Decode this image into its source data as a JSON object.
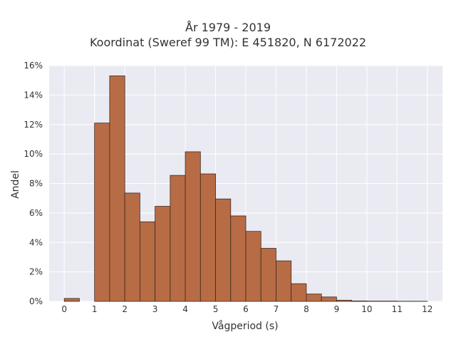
{
  "chart_data": {
    "type": "bar",
    "title_lines": [
      "År 1979 - 2019",
      "Koordinat (Sweref 99 TM): E 451820, N 6172022"
    ],
    "xlabel": "Vågperiod (s)",
    "ylabel": "Andel",
    "xlim": [
      -0.5,
      12.5
    ],
    "ylim": [
      0,
      16
    ],
    "x_ticks": [
      "0",
      "1",
      "2",
      "3",
      "4",
      "5",
      "6",
      "7",
      "8",
      "9",
      "10",
      "11",
      "12"
    ],
    "y_ticks": [
      "0%",
      "2%",
      "4%",
      "6%",
      "8%",
      "10%",
      "12%",
      "14%",
      "16%"
    ],
    "grid": true,
    "bin_width": 0.5,
    "bins": [
      {
        "start": 0.0,
        "value": 0.2
      },
      {
        "start": 0.5,
        "value": 0.0
      },
      {
        "start": 1.0,
        "value": 12.1
      },
      {
        "start": 1.5,
        "value": 15.3
      },
      {
        "start": 2.0,
        "value": 7.35
      },
      {
        "start": 2.5,
        "value": 5.4
      },
      {
        "start": 3.0,
        "value": 6.45
      },
      {
        "start": 3.5,
        "value": 8.55
      },
      {
        "start": 4.0,
        "value": 10.15
      },
      {
        "start": 4.5,
        "value": 8.65
      },
      {
        "start": 5.0,
        "value": 6.95
      },
      {
        "start": 5.5,
        "value": 5.8
      },
      {
        "start": 6.0,
        "value": 4.75
      },
      {
        "start": 6.5,
        "value": 3.6
      },
      {
        "start": 7.0,
        "value": 2.75
      },
      {
        "start": 7.5,
        "value": 1.2
      },
      {
        "start": 8.0,
        "value": 0.5
      },
      {
        "start": 8.5,
        "value": 0.3
      },
      {
        "start": 9.0,
        "value": 0.08
      },
      {
        "start": 9.5,
        "value": 0.03
      },
      {
        "start": 10.0,
        "value": 0.02
      },
      {
        "start": 10.5,
        "value": 0.02
      },
      {
        "start": 11.0,
        "value": 0.01
      },
      {
        "start": 11.5,
        "value": 0.01
      }
    ],
    "colors": {
      "bar_fill": "#b86c45",
      "bar_edge": "#3b2a20",
      "plot_background": "#eaeaf2",
      "grid": "#ffffff"
    }
  }
}
